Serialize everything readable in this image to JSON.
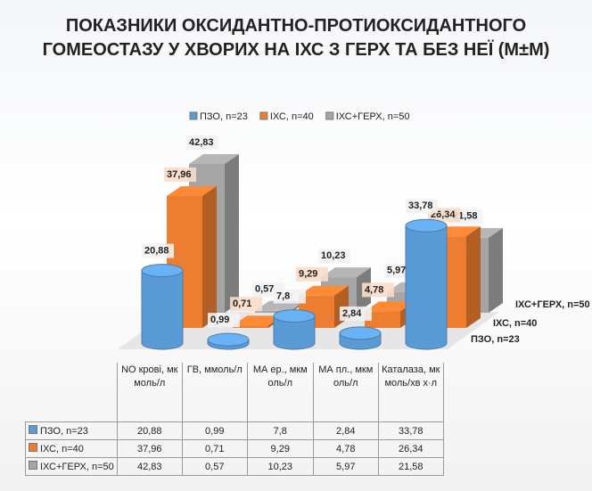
{
  "chart_data": {
    "type": "bar3d",
    "title": "ПОКАЗНИКИ ОКСИДАНТНО-ПРОТИОКСИДАНТНОГО ГОМЕОСТАЗУ У ХВОРИХ НА ІХС З ГЕРХ ТА БЕЗ НЕЇ (М±М)",
    "categories": [
      "NO крові, мкмоль/л",
      "ГВ, ммоль/л",
      "МА ер., мкмоль/л",
      "МА пл., мкмоль/л",
      "Каталаза, мкмоль/хв х·л"
    ],
    "series": [
      {
        "name": "ПЗО, n=23",
        "color": "#5b9bd5",
        "values": [
          20.88,
          0.99,
          7.8,
          2.84,
          33.78
        ],
        "value_labels": [
          "20,88",
          "0,99",
          "7,8",
          "2,84",
          "33,78"
        ]
      },
      {
        "name": "ІХС, n=40",
        "color": "#ed7d31",
        "values": [
          37.96,
          0.71,
          9.29,
          4.78,
          26.34
        ],
        "value_labels": [
          "37,96",
          "0,71",
          "9,29",
          "4,78",
          "26,34"
        ]
      },
      {
        "name": "ІХС+ГЕРХ, n=50",
        "color": "#a5a5a5",
        "values": [
          42.83,
          0.57,
          10.23,
          5.97,
          21.58
        ],
        "value_labels": [
          "42,83",
          "0,57",
          "10,23",
          "5,97",
          "21,58"
        ]
      }
    ],
    "legend": "top"
  }
}
